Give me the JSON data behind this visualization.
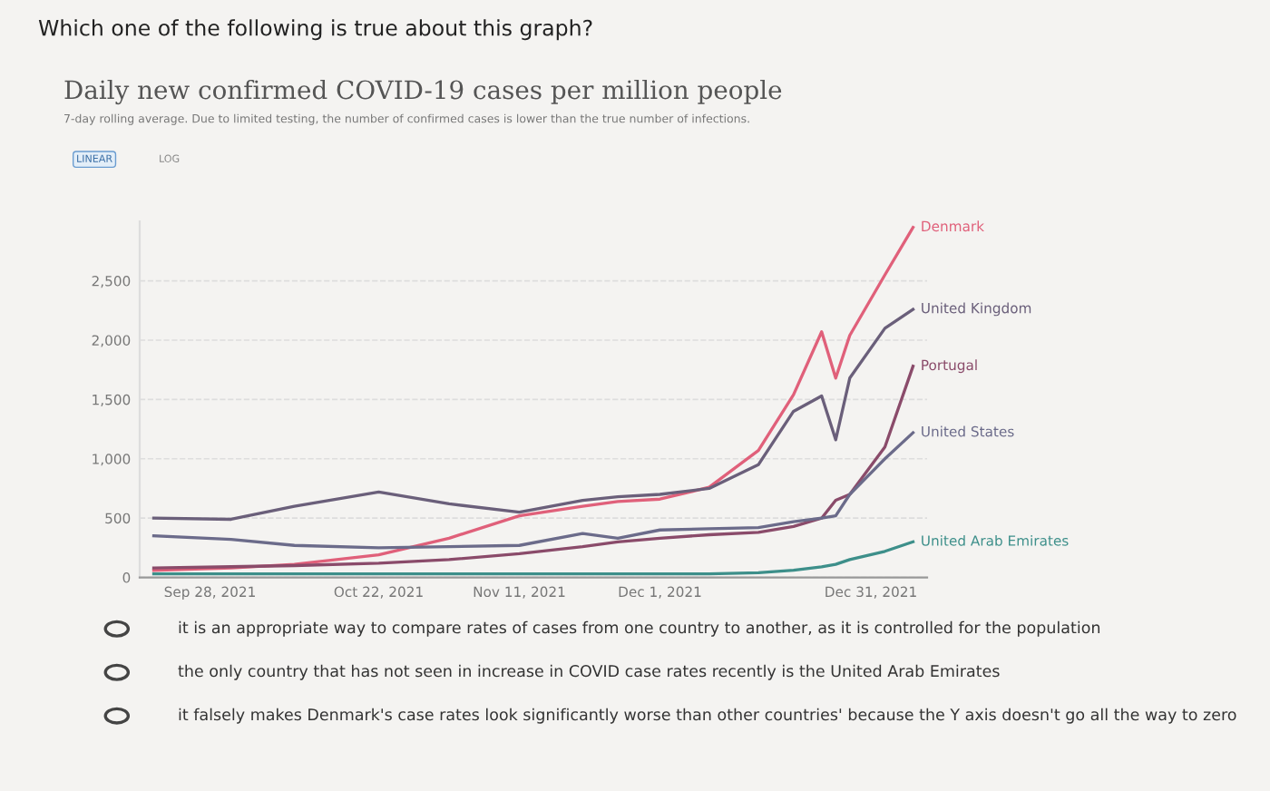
{
  "chart_data": {
    "type": "line",
    "title": "Daily new confirmed COVID-19 cases per million people",
    "subtitle": "7-day rolling average. Due to limited testing, the number of confirmed cases is lower than the true number of infections.",
    "annotations": [
      "Which one of the following is true about this graph?",
      "LINEAR",
      "LOG",
      "it is an appropriate way to compare rates of cases from one country to another, as it is controlled for the population",
      "the only country that has not seen in increase in COVID case rates recently is the United Arab Emirates",
      "it falsely makes Denmark's case rates look significantly worse than other countries' because the Y axis doesn't go all the way to zero"
    ],
    "x": [
      "2021-09-20",
      "2021-10-01",
      "2021-10-10",
      "2021-10-22",
      "2021-11-01",
      "2021-11-11",
      "2021-11-20",
      "2021-11-25",
      "2021-12-01",
      "2021-12-08",
      "2021-12-15",
      "2021-12-20",
      "2021-12-24",
      "2021-12-26",
      "2021-12-28",
      "2022-01-02",
      "2022-01-06"
    ],
    "series": [
      {
        "name": "Denmark",
        "color": "#e0607a",
        "values": [
          60,
          80,
          110,
          190,
          330,
          520,
          600,
          640,
          660,
          760,
          1070,
          1540,
          2070,
          1680,
          2040,
          2550,
          2950
        ]
      },
      {
        "name": "United Kingdom",
        "color": "#6a5f7a",
        "values": [
          500,
          490,
          600,
          720,
          620,
          550,
          650,
          680,
          700,
          750,
          950,
          1400,
          1530,
          1160,
          1680,
          2100,
          2260
        ]
      },
      {
        "name": "Portugal",
        "color": "#8a4b6a",
        "values": [
          80,
          90,
          100,
          120,
          150,
          200,
          260,
          300,
          330,
          360,
          380,
          430,
          500,
          650,
          700,
          1100,
          1780
        ]
      },
      {
        "name": "United States",
        "color": "#6b6b8a",
        "values": [
          350,
          320,
          270,
          250,
          260,
          270,
          370,
          330,
          400,
          410,
          420,
          470,
          500,
          520,
          700,
          1000,
          1220
        ]
      },
      {
        "name": "United Arab Emirates",
        "color": "#3d8f8a",
        "values": [
          30,
          30,
          30,
          30,
          30,
          30,
          30,
          30,
          30,
          30,
          40,
          60,
          90,
          110,
          150,
          220,
          300
        ]
      }
    ],
    "ylim": [
      0,
      3000
    ],
    "yticks": [
      0,
      {
        "value": 500,
        "label": "500"
      },
      {
        "value": 1000,
        "label": "1,000"
      },
      {
        "value": 1500,
        "label": "1,500"
      },
      {
        "value": 2000,
        "label": "2,000"
      },
      {
        "value": 2500,
        "label": "2,500"
      }
    ],
    "xlim": [
      "2021-09-18",
      "2022-01-08"
    ],
    "xticks": [
      {
        "value": "2021-09-28",
        "label": "Sep 28, 2021"
      },
      {
        "value": "2021-10-22",
        "label": "Oct 22, 2021"
      },
      {
        "value": "2021-11-11",
        "label": "Nov 11, 2021"
      },
      {
        "value": "2021-12-01",
        "label": "Dec 1, 2021"
      },
      {
        "value": "2021-12-31",
        "label": "Dec 31, 2021"
      }
    ],
    "grid": "y",
    "legend": false,
    "marker": "none",
    "line_style": "solid"
  }
}
